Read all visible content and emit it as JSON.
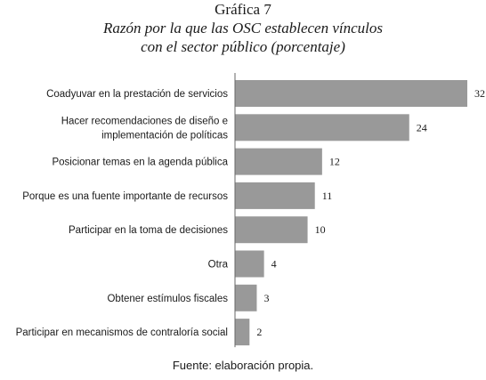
{
  "figure": {
    "label": "Gráfica 7",
    "title_line1": "Razón por la que las OSC establecen vínculos",
    "title_line2": "con el sector público (porcentaje)",
    "source": "Fuente: elaboración propia."
  },
  "chart_data": {
    "type": "bar",
    "orientation": "horizontal",
    "title": "Razón por la que las OSC establecen vínculos con el sector público (porcentaje)",
    "categories": [
      [
        "Coadyuvar en la prestación de servicios"
      ],
      [
        "Hacer recomendaciones de diseño e",
        "implementación de políticas"
      ],
      [
        "Posicionar temas en la agenda pública"
      ],
      [
        "Porque es una fuente importante de recursos"
      ],
      [
        "Participar en la toma de decisiones"
      ],
      [
        "Otra"
      ],
      [
        "Obtener estímulos fiscales"
      ],
      [
        "Participar en mecanismos de contraloría social"
      ]
    ],
    "values": [
      32,
      24,
      12,
      11,
      10,
      4,
      3,
      2
    ],
    "xlim": [
      0,
      32
    ],
    "grid": false,
    "legend": "none",
    "bar_color": "#999999",
    "axis_color": "#666666"
  }
}
